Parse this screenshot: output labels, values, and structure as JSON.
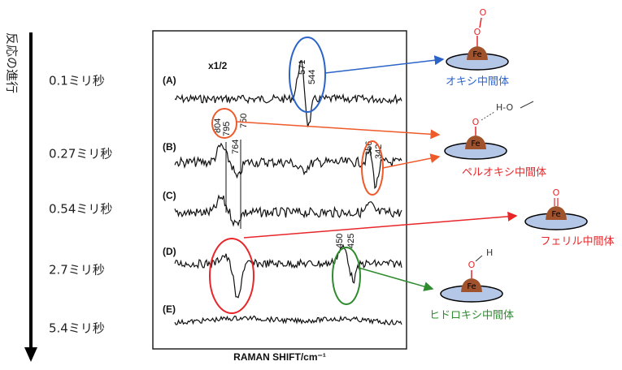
{
  "axis_label": "反応の進行",
  "times": [
    "0.1ミリ秒",
    "0.27ミリ秒",
    "0.54ミリ秒",
    "2.7ミリ秒",
    "5.4ミリ秒"
  ],
  "spectra": {
    "labels": [
      "(A)",
      "(B)",
      "(C)",
      "(D)",
      "(E)"
    ],
    "scale_note": "x1/2",
    "x_axis": "RAMAN SHIFT/cm⁻¹",
    "peaks": [
      "571",
      "544",
      "804",
      "795",
      "764",
      "750",
      "356",
      "342",
      "450",
      "425"
    ]
  },
  "intermediates": [
    {
      "label": "オキシ中間体",
      "metal": "Fe",
      "atoms": [
        "O",
        "O"
      ]
    },
    {
      "label": "ペルオキシ中間体",
      "metal": "Fe",
      "atoms": [
        "O",
        "H-O"
      ]
    },
    {
      "label": "フェリル中間体",
      "metal": "Fe",
      "atoms": [
        "O"
      ]
    },
    {
      "label": "ヒドロキシ中間体",
      "metal": "Fe",
      "atoms": [
        "O",
        "H"
      ]
    }
  ]
}
